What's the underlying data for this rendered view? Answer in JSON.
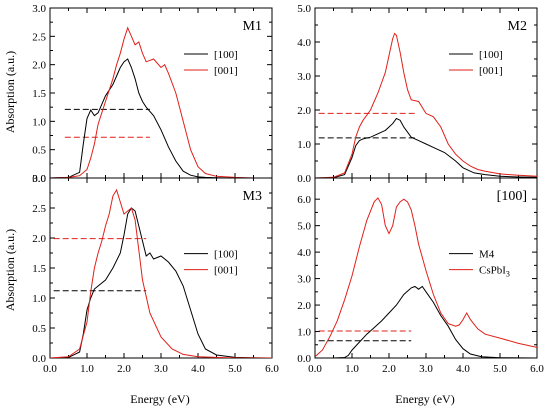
{
  "figure": {
    "ylabel": "Absorption (a.u.)",
    "xlabel": "Energy (eV)"
  },
  "chart_data": [
    {
      "type": "line",
      "title": "M1",
      "xlabel": "",
      "ylabel": "Absorption (a.u.)",
      "xlim": [
        0,
        6
      ],
      "ylim": [
        0,
        3
      ],
      "xticks": [
        "0.0",
        "1.0",
        "2.0",
        "3.0",
        "4.0",
        "5.0",
        "6.0"
      ],
      "yticks": [
        "0.0",
        "0.5",
        "1.0",
        "1.5",
        "2.0",
        "2.5",
        "3.0"
      ],
      "legend": "top-right",
      "series": [
        {
          "name": "[100]",
          "color": "#000000",
          "x": [
            0,
            0.5,
            0.8,
            0.9,
            1.0,
            1.1,
            1.2,
            1.3,
            1.4,
            1.5,
            1.6,
            1.7,
            1.8,
            1.9,
            2.0,
            2.1,
            2.2,
            2.3,
            2.4,
            2.5,
            2.6,
            2.8,
            3.0,
            3.2,
            3.4,
            3.6,
            3.8,
            4.0,
            4.2,
            4.5,
            5.0,
            6.0
          ],
          "y": [
            0,
            0.01,
            0.1,
            0.6,
            1.05,
            1.2,
            1.1,
            1.15,
            1.3,
            1.45,
            1.55,
            1.65,
            1.8,
            1.95,
            2.05,
            2.1,
            1.95,
            1.75,
            1.5,
            1.35,
            1.25,
            1.1,
            0.85,
            0.55,
            0.3,
            0.12,
            0.05,
            0.02,
            0.01,
            0.005,
            0,
            0
          ]
        },
        {
          "name": "[001]",
          "color": "#e0201a",
          "x": [
            0,
            0.5,
            0.8,
            1.0,
            1.1,
            1.2,
            1.3,
            1.4,
            1.5,
            1.6,
            1.7,
            1.8,
            1.9,
            2.0,
            2.1,
            2.2,
            2.3,
            2.4,
            2.5,
            2.6,
            2.8,
            3.0,
            3.1,
            3.2,
            3.4,
            3.6,
            3.8,
            4.0,
            4.2,
            4.5,
            5.0,
            5.5,
            6.0
          ],
          "y": [
            0,
            0.01,
            0.04,
            0.15,
            0.35,
            0.6,
            0.95,
            1.15,
            1.35,
            1.55,
            1.75,
            2.0,
            2.2,
            2.45,
            2.65,
            2.5,
            2.35,
            2.4,
            2.2,
            2.05,
            2.1,
            1.95,
            2.0,
            1.85,
            1.5,
            1.0,
            0.5,
            0.2,
            0.08,
            0.03,
            0.01,
            0,
            0
          ]
        }
      ],
      "dashed": [
        {
          "y": 1.21,
          "x": [
            0.4,
            2.7
          ],
          "color": "#000000"
        },
        {
          "y": 0.72,
          "x": [
            0.4,
            2.7
          ],
          "color": "#e0201a"
        }
      ]
    },
    {
      "type": "line",
      "title": "M2",
      "xlabel": "",
      "ylabel": "",
      "xlim": [
        0,
        6
      ],
      "ylim": [
        0,
        5
      ],
      "xticks": [
        "0.0",
        "1.0",
        "2.0",
        "3.0",
        "4.0",
        "5.0",
        "6.0"
      ],
      "yticks": [
        "0.0",
        "1.0",
        "2.0",
        "3.0",
        "4.0",
        "5.0"
      ],
      "legend": "top-right",
      "series": [
        {
          "name": "[100]",
          "color": "#000000",
          "x": [
            0,
            0.5,
            0.8,
            1.0,
            1.1,
            1.2,
            1.3,
            1.5,
            1.7,
            1.9,
            2.0,
            2.1,
            2.2,
            2.3,
            2.4,
            2.6,
            2.8,
            3.0,
            3.2,
            3.5,
            3.8,
            4.0,
            4.3,
            4.6,
            5.0,
            5.5,
            6.0
          ],
          "y": [
            0,
            0.01,
            0.1,
            0.6,
            0.95,
            1.1,
            1.15,
            1.2,
            1.3,
            1.4,
            1.5,
            1.6,
            1.75,
            1.7,
            1.5,
            1.2,
            1.1,
            1.0,
            0.9,
            0.75,
            0.5,
            0.3,
            0.15,
            0.1,
            0.05,
            0.03,
            0.02
          ]
        },
        {
          "name": "[001]",
          "color": "#e0201a",
          "x": [
            0,
            0.5,
            0.8,
            1.0,
            1.1,
            1.2,
            1.3,
            1.5,
            1.7,
            1.9,
            2.0,
            2.1,
            2.15,
            2.2,
            2.3,
            2.4,
            2.5,
            2.6,
            2.8,
            3.0,
            3.2,
            3.4,
            3.6,
            3.8,
            4.0,
            4.2,
            4.4,
            4.6,
            5.0,
            5.5,
            6.0
          ],
          "y": [
            0,
            0.02,
            0.15,
            0.7,
            1.2,
            1.5,
            1.7,
            2.0,
            2.5,
            3.1,
            3.6,
            4.1,
            4.25,
            4.2,
            3.7,
            3.1,
            2.6,
            2.3,
            2.25,
            1.9,
            1.8,
            1.5,
            1.0,
            0.7,
            0.5,
            0.35,
            0.25,
            0.2,
            0.12,
            0.08,
            0.05
          ]
        }
      ],
      "dashed": [
        {
          "y": 1.9,
          "x": [
            0.1,
            2.7
          ],
          "color": "#e0201a"
        },
        {
          "y": 1.18,
          "x": [
            0.1,
            2.7
          ],
          "color": "#000000"
        }
      ]
    },
    {
      "type": "line",
      "title": "M3",
      "xlabel": "Energy (eV)",
      "ylabel": "Absorption (a.u.)",
      "xlim": [
        0,
        6
      ],
      "ylim": [
        0,
        3
      ],
      "xticks": [
        "0.0",
        "1.0",
        "2.0",
        "3.0",
        "4.0",
        "5.0",
        "6.0"
      ],
      "yticks": [
        "0.0",
        "0.5",
        "1.0",
        "1.5",
        "2.0",
        "2.5",
        "3.0"
      ],
      "legend": "middle-right",
      "series": [
        {
          "name": "[100]",
          "color": "#000000",
          "x": [
            0,
            0.5,
            0.8,
            0.9,
            1.0,
            1.1,
            1.2,
            1.3,
            1.5,
            1.7,
            1.9,
            2.0,
            2.1,
            2.2,
            2.3,
            2.4,
            2.5,
            2.6,
            2.7,
            2.8,
            3.0,
            3.2,
            3.4,
            3.6,
            3.8,
            4.0,
            4.2,
            4.5,
            5.0,
            6.0
          ],
          "y": [
            0,
            0.01,
            0.1,
            0.4,
            0.8,
            1.0,
            1.15,
            1.2,
            1.3,
            1.5,
            1.75,
            2.05,
            2.4,
            2.5,
            2.45,
            2.2,
            1.95,
            1.7,
            1.75,
            1.65,
            1.7,
            1.6,
            1.45,
            1.2,
            0.8,
            0.4,
            0.15,
            0.05,
            0.01,
            0
          ]
        },
        {
          "name": "[001]",
          "color": "#e0201a",
          "x": [
            0,
            0.5,
            0.8,
            1.0,
            1.1,
            1.2,
            1.3,
            1.4,
            1.5,
            1.6,
            1.7,
            1.8,
            1.9,
            2.0,
            2.1,
            2.2,
            2.3,
            2.4,
            2.5,
            2.7,
            3.0,
            3.3,
            3.6,
            4.0,
            4.5,
            5.0,
            6.0
          ],
          "y": [
            0,
            0.02,
            0.15,
            0.6,
            1.1,
            1.5,
            1.75,
            1.95,
            2.2,
            2.4,
            2.7,
            2.8,
            2.6,
            2.4,
            2.45,
            2.5,
            2.3,
            1.8,
            1.3,
            0.75,
            0.35,
            0.15,
            0.06,
            0.02,
            0.01,
            0,
            0
          ]
        }
      ],
      "dashed": [
        {
          "y": 1.99,
          "x": [
            0.1,
            2.6
          ],
          "color": "#e0201a"
        },
        {
          "y": 1.12,
          "x": [
            0.1,
            2.6
          ],
          "color": "#000000"
        }
      ]
    },
    {
      "type": "line",
      "title": "[100]",
      "xlabel": "Energy (eV)",
      "ylabel": "",
      "xlim": [
        0,
        6
      ],
      "ylim": [
        0,
        6.8
      ],
      "xticks": [
        "0.0",
        "1.0",
        "2.0",
        "3.0",
        "4.0",
        "5.0",
        "6.0"
      ],
      "yticks": [
        "0.0",
        "1.0",
        "2.0",
        "3.0",
        "4.0",
        "5.0",
        "6.0"
      ],
      "legend": "middle-right",
      "series": [
        {
          "name": "M4",
          "color": "#000000",
          "x": [
            0,
            0.5,
            0.8,
            0.9,
            1.0,
            1.2,
            1.4,
            1.6,
            1.8,
            2.0,
            2.2,
            2.4,
            2.6,
            2.7,
            2.8,
            2.9,
            3.0,
            3.2,
            3.4,
            3.6,
            3.8,
            4.0,
            4.2,
            4.5,
            5.0,
            6.0
          ],
          "y": [
            0,
            0.0,
            0.02,
            0.1,
            0.3,
            0.6,
            0.9,
            1.15,
            1.4,
            1.7,
            2.0,
            2.4,
            2.65,
            2.7,
            2.6,
            2.7,
            2.5,
            2.1,
            1.6,
            1.2,
            0.7,
            0.35,
            0.15,
            0.05,
            0.01,
            0
          ]
        },
        {
          "name": "CsPbI3",
          "name_main": "CsPbI",
          "name_sub": "3",
          "color": "#e0201a",
          "x": [
            0,
            0.2,
            0.4,
            0.6,
            0.8,
            1.0,
            1.2,
            1.4,
            1.6,
            1.7,
            1.8,
            1.9,
            2.0,
            2.1,
            2.2,
            2.3,
            2.4,
            2.5,
            2.6,
            2.7,
            2.8,
            3.0,
            3.2,
            3.4,
            3.6,
            3.8,
            3.9,
            4.0,
            4.1,
            4.2,
            4.4,
            4.6,
            5.0,
            5.5,
            6.0
          ],
          "y": [
            0.05,
            0.3,
            0.8,
            1.4,
            2.2,
            3.1,
            4.2,
            5.2,
            5.9,
            6.05,
            5.8,
            5.0,
            4.7,
            5.0,
            5.7,
            5.9,
            6.0,
            5.9,
            5.6,
            5.0,
            4.3,
            3.3,
            2.4,
            1.7,
            1.3,
            1.2,
            1.25,
            1.45,
            1.7,
            1.45,
            1.1,
            0.9,
            0.75,
            0.55,
            0.4
          ]
        }
      ],
      "dashed": [
        {
          "y": 1.02,
          "x": [
            0.1,
            2.6
          ],
          "color": "#e0201a"
        },
        {
          "y": 0.65,
          "x": [
            0.1,
            2.6
          ],
          "color": "#000000"
        }
      ]
    }
  ]
}
